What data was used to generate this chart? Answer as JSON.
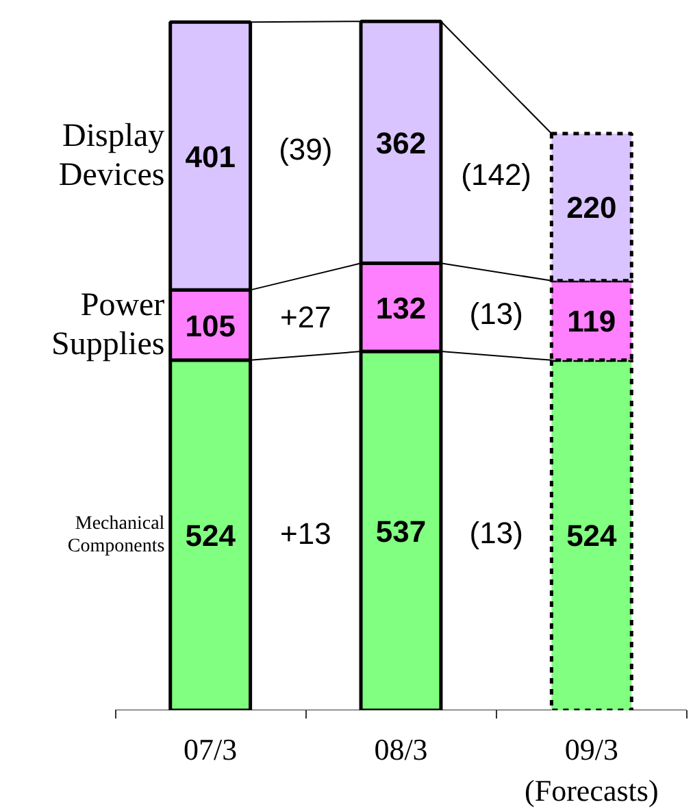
{
  "chart_data": {
    "type": "bar",
    "stacked": true,
    "categories": [
      "07/3",
      "08/3",
      "09/3\n(Forecasts)"
    ],
    "series": [
      {
        "name": "Mechanical Components",
        "color": "#80ff80",
        "values": [
          524,
          537,
          524
        ]
      },
      {
        "name": "Power Supplies",
        "color": "#ff80ff",
        "values": [
          105,
          132,
          119
        ]
      },
      {
        "name": "Display Devices",
        "color": "#d9c4ff",
        "values": [
          401,
          362,
          220
        ]
      }
    ],
    "data_labels": true,
    "annotations": [
      "+13",
      "+27",
      "(39)",
      "(13)",
      "(13)",
      "(142)"
    ]
  }
}
